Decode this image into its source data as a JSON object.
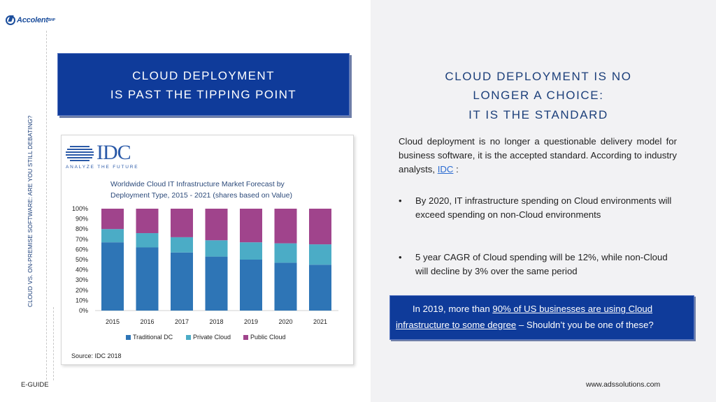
{
  "brand": {
    "logo_text": "Accolent",
    "logo_suffix": "BHP"
  },
  "side_label": "CLOUD VS. ON-PREMISE SOFTWARE: ARE YOU STILL DEBATING?",
  "left_title": {
    "line1": "CLOUD DEPLOYMENT",
    "line2": "IS PAST THE TIPPING POINT"
  },
  "idc": {
    "wordmark": "IDC",
    "tagline": "ANALYZE THE FUTURE"
  },
  "chart_data": {
    "type": "bar",
    "stacked": true,
    "title": "Worldwide Cloud IT Infrastructure Market Forecast by Deployment Type, 2015 - 2021 (shares based on Value)",
    "title_lines": [
      "Worldwide Cloud IT Infrastructure Market Forecast by",
      "Deployment Type, 2015 - 2021 (shares based on Value)"
    ],
    "categories": [
      "2015",
      "2016",
      "2017",
      "2018",
      "2019",
      "2020",
      "2021"
    ],
    "y_ticks": [
      "100%",
      "90%",
      "80%",
      "70%",
      "60%",
      "50%",
      "40%",
      "30%",
      "20%",
      "10%",
      "0%"
    ],
    "ylim": [
      0,
      100
    ],
    "series": [
      {
        "name": "Traditional DC",
        "color": "#2e75b6",
        "values": [
          67,
          62,
          57,
          53,
          50,
          47,
          45
        ]
      },
      {
        "name": "Private Cloud",
        "color": "#4bacc6",
        "values": [
          13,
          14,
          15,
          16,
          17,
          19,
          20
        ]
      },
      {
        "name": "Public Cloud",
        "color": "#a0448c",
        "values": [
          20,
          24,
          28,
          31,
          33,
          34,
          35
        ]
      }
    ],
    "legend_position": "bottom",
    "grid": false
  },
  "source": "Source: IDC 2018",
  "right_title": {
    "line1": "CLOUD DEPLOYMENT IS NO",
    "line2": "LONGER A CHOICE:",
    "line3": "IT IS THE STANDARD"
  },
  "intro": {
    "text": "Cloud deployment is no longer a questionable delivery model for business software, it is the accepted standard. According to industry analysts, ",
    "link": "IDC",
    "after": " :"
  },
  "bullets": [
    {
      "symbol": "•",
      "text": "By 2020, IT infrastructure spending on Cloud environments will exceed spending on non-Cloud environments"
    },
    {
      "symbol": "•",
      "text": "5 year CAGR of Cloud spending will be 12%, while non-Cloud will decline by 3% over the same period"
    }
  ],
  "callout": {
    "pre": "In 2019, more than ",
    "link": "90% of US businesses are using Cloud infrastructure to some degree",
    "post": " – Shouldn’t you be one of these?"
  },
  "footer": {
    "left": "E-GUIDE",
    "right": "www.adssolutions.com"
  }
}
